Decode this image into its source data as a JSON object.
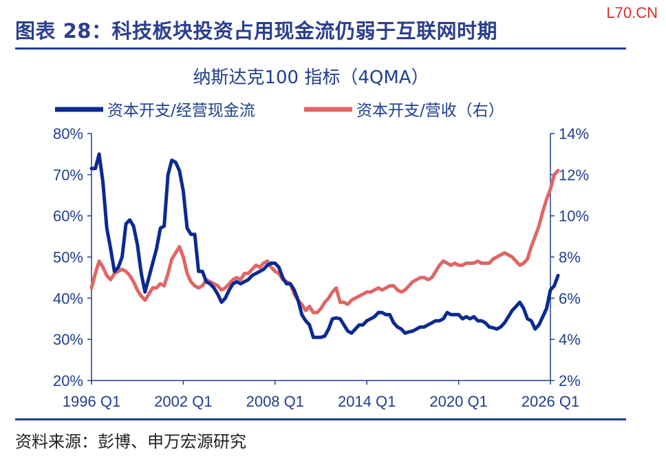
{
  "header": {
    "title": "图表 28：科技板块投资占用现金流仍弱于互联网时期",
    "watermark": "L70.CN"
  },
  "footer": {
    "source": "资料来源：彭博、申万宏源研究"
  },
  "colors": {
    "series1": "#0b2a91",
    "series2": "#e06666",
    "axis": "#1f3f8f"
  },
  "chart_data": {
    "type": "line",
    "title": "纳斯达克100 指标（4QMA）",
    "legend_position": "top",
    "grid": false,
    "x_range": [
      1996.0,
      2026.0
    ],
    "x_ticks": [
      {
        "value": 1996.0,
        "label": "1996 Q1"
      },
      {
        "value": 2002.0,
        "label": "2002 Q1"
      },
      {
        "value": 2008.0,
        "label": "2008 Q1"
      },
      {
        "value": 2014.0,
        "label": "2014 Q1"
      },
      {
        "value": 2020.0,
        "label": "2020 Q1"
      },
      {
        "value": 2026.0,
        "label": "2026 Q1"
      }
    ],
    "y_left": {
      "range": [
        20,
        80
      ],
      "ticks": [
        "20%",
        "30%",
        "40%",
        "50%",
        "60%",
        "70%",
        "80%"
      ],
      "tick_values": [
        20,
        30,
        40,
        50,
        60,
        70,
        80
      ]
    },
    "y_right": {
      "range": [
        2,
        14
      ],
      "ticks": [
        "2%",
        "4%",
        "6%",
        "8%",
        "10%",
        "12%",
        "14%"
      ],
      "tick_values": [
        2,
        4,
        6,
        8,
        10,
        12,
        14
      ]
    },
    "series": [
      {
        "name": "资本开支/经营现金流",
        "axis": "left",
        "points": [
          [
            1996.0,
            71.5
          ],
          [
            1996.25,
            71.5
          ],
          [
            1996.5,
            75
          ],
          [
            1996.75,
            68
          ],
          [
            1997.0,
            57
          ],
          [
            1997.25,
            52
          ],
          [
            1997.5,
            46.5
          ],
          [
            1997.75,
            47.5
          ],
          [
            1998.0,
            50
          ],
          [
            1998.25,
            58
          ],
          [
            1998.5,
            59
          ],
          [
            1998.75,
            57.5
          ],
          [
            1999.0,
            53
          ],
          [
            1999.25,
            46
          ],
          [
            1999.5,
            41.5
          ],
          [
            1999.75,
            45
          ],
          [
            2000.0,
            48.5
          ],
          [
            2000.25,
            52
          ],
          [
            2000.5,
            57
          ],
          [
            2000.75,
            57.5
          ],
          [
            2001.0,
            70
          ],
          [
            2001.25,
            73.5
          ],
          [
            2001.5,
            73
          ],
          [
            2001.75,
            71
          ],
          [
            2002.0,
            66
          ],
          [
            2002.25,
            57
          ],
          [
            2002.5,
            55.5
          ],
          [
            2002.75,
            55.5
          ],
          [
            2003.0,
            46.5
          ],
          [
            2003.25,
            46.5
          ],
          [
            2003.5,
            44
          ],
          [
            2003.75,
            43.5
          ],
          [
            2004.0,
            42.5
          ],
          [
            2004.25,
            41
          ],
          [
            2004.5,
            39
          ],
          [
            2004.75,
            40
          ],
          [
            2005.0,
            42
          ],
          [
            2005.25,
            43.5
          ],
          [
            2005.5,
            44
          ],
          [
            2005.75,
            43.5
          ],
          [
            2006.0,
            44
          ],
          [
            2006.25,
            44.5
          ],
          [
            2006.5,
            45.5
          ],
          [
            2006.75,
            46
          ],
          [
            2007.0,
            46.5
          ],
          [
            2007.25,
            47
          ],
          [
            2007.5,
            48
          ],
          [
            2007.75,
            48.5
          ],
          [
            2008.0,
            48.5
          ],
          [
            2008.25,
            47.5
          ],
          [
            2008.5,
            45
          ],
          [
            2008.75,
            43.5
          ],
          [
            2009.0,
            43.5
          ],
          [
            2009.25,
            42
          ],
          [
            2009.5,
            39.5
          ],
          [
            2009.75,
            36
          ],
          [
            2010.0,
            34.5
          ],
          [
            2010.25,
            33.5
          ],
          [
            2010.5,
            30.5
          ],
          [
            2010.75,
            30.5
          ],
          [
            2011.0,
            30.5
          ],
          [
            2011.25,
            30.8
          ],
          [
            2011.5,
            32.5
          ],
          [
            2011.75,
            35
          ],
          [
            2012.0,
            35.2
          ],
          [
            2012.25,
            35
          ],
          [
            2012.5,
            33.5
          ],
          [
            2012.75,
            32
          ],
          [
            2013.0,
            31.5
          ],
          [
            2013.25,
            32.5
          ],
          [
            2013.5,
            33.5
          ],
          [
            2013.75,
            33.5
          ],
          [
            2014.0,
            34.5
          ],
          [
            2014.25,
            35
          ],
          [
            2014.5,
            35.5
          ],
          [
            2014.75,
            36.5
          ],
          [
            2015.0,
            36.5
          ],
          [
            2015.25,
            36
          ],
          [
            2015.5,
            36
          ],
          [
            2015.75,
            34
          ],
          [
            2016.0,
            33
          ],
          [
            2016.25,
            32.5
          ],
          [
            2016.5,
            31.5
          ],
          [
            2016.75,
            31.8
          ],
          [
            2017.0,
            32
          ],
          [
            2017.25,
            32.5
          ],
          [
            2017.5,
            33
          ],
          [
            2017.75,
            33
          ],
          [
            2018.0,
            33.5
          ],
          [
            2018.25,
            34
          ],
          [
            2018.5,
            34.5
          ],
          [
            2018.75,
            34.5
          ],
          [
            2019.0,
            35
          ],
          [
            2019.25,
            36.5
          ],
          [
            2019.5,
            36
          ],
          [
            2019.75,
            36
          ],
          [
            2020.0,
            36
          ],
          [
            2020.25,
            35
          ],
          [
            2020.5,
            35.5
          ],
          [
            2020.75,
            35
          ],
          [
            2021.0,
            35.5
          ],
          [
            2021.25,
            34.5
          ],
          [
            2021.5,
            34.5
          ],
          [
            2021.75,
            34
          ],
          [
            2022.0,
            33
          ],
          [
            2022.25,
            32.8
          ],
          [
            2022.5,
            32.5
          ],
          [
            2022.75,
            33
          ],
          [
            2023.0,
            34
          ],
          [
            2023.25,
            35.5
          ],
          [
            2023.5,
            37
          ],
          [
            2023.75,
            38
          ],
          [
            2024.0,
            39
          ],
          [
            2024.25,
            37.5
          ],
          [
            2024.5,
            35
          ],
          [
            2024.75,
            34.5
          ],
          [
            2025.0,
            32.5
          ],
          [
            2025.25,
            33.5
          ],
          [
            2025.5,
            35.5
          ],
          [
            2025.75,
            37.5
          ],
          [
            2026.0,
            42
          ],
          [
            2026.25,
            43
          ],
          [
            2026.5,
            45.5
          ]
        ]
      },
      {
        "name": "资本开支/营收（右）",
        "axis": "right",
        "points": [
          [
            1996.0,
            6.5
          ],
          [
            1996.25,
            7.2
          ],
          [
            1996.5,
            7.8
          ],
          [
            1996.75,
            7.5
          ],
          [
            1997.0,
            7.1
          ],
          [
            1997.25,
            6.9
          ],
          [
            1997.5,
            7.2
          ],
          [
            1997.75,
            7.3
          ],
          [
            1998.0,
            7.4
          ],
          [
            1998.25,
            7.3
          ],
          [
            1998.5,
            7.1
          ],
          [
            1998.75,
            6.8
          ],
          [
            1999.0,
            6.4
          ],
          [
            1999.25,
            6.1
          ],
          [
            1999.5,
            5.9
          ],
          [
            1999.75,
            6.2
          ],
          [
            2000.0,
            6.5
          ],
          [
            2000.25,
            6.5
          ],
          [
            2000.5,
            6.7
          ],
          [
            2000.75,
            6.6
          ],
          [
            2001.0,
            7.2
          ],
          [
            2001.25,
            7.9
          ],
          [
            2001.5,
            8.2
          ],
          [
            2001.75,
            8.5
          ],
          [
            2002.0,
            8.0
          ],
          [
            2002.25,
            7.2
          ],
          [
            2002.5,
            6.8
          ],
          [
            2002.75,
            6.6
          ],
          [
            2003.0,
            6.5
          ],
          [
            2003.25,
            6.6
          ],
          [
            2003.5,
            6.9
          ],
          [
            2003.75,
            6.8
          ],
          [
            2004.0,
            6.7
          ],
          [
            2004.25,
            6.6
          ],
          [
            2004.5,
            6.4
          ],
          [
            2004.75,
            6.5
          ],
          [
            2005.0,
            6.7
          ],
          [
            2005.25,
            6.9
          ],
          [
            2005.5,
            7.0
          ],
          [
            2005.75,
            6.9
          ],
          [
            2006.0,
            7.2
          ],
          [
            2006.25,
            7.2
          ],
          [
            2006.5,
            7.4
          ],
          [
            2006.75,
            7.6
          ],
          [
            2007.0,
            7.5
          ],
          [
            2007.25,
            7.7
          ],
          [
            2007.5,
            7.8
          ],
          [
            2007.75,
            7.5
          ],
          [
            2008.0,
            7.3
          ],
          [
            2008.25,
            7.2
          ],
          [
            2008.5,
            6.9
          ],
          [
            2008.75,
            6.8
          ],
          [
            2009.0,
            6.7
          ],
          [
            2009.25,
            6.2
          ],
          [
            2009.5,
            5.9
          ],
          [
            2009.75,
            5.7
          ],
          [
            2010.0,
            5.4
          ],
          [
            2010.25,
            5.6
          ],
          [
            2010.5,
            5.3
          ],
          [
            2010.75,
            5.3
          ],
          [
            2011.0,
            5.5
          ],
          [
            2011.25,
            5.8
          ],
          [
            2011.5,
            6.0
          ],
          [
            2011.75,
            6.3
          ],
          [
            2012.0,
            6.5
          ],
          [
            2012.25,
            5.8
          ],
          [
            2012.5,
            5.8
          ],
          [
            2012.75,
            5.7
          ],
          [
            2013.0,
            5.9
          ],
          [
            2013.25,
            6.0
          ],
          [
            2013.5,
            6.1
          ],
          [
            2013.75,
            6.2
          ],
          [
            2014.0,
            6.3
          ],
          [
            2014.25,
            6.3
          ],
          [
            2014.5,
            6.4
          ],
          [
            2014.75,
            6.5
          ],
          [
            2015.0,
            6.4
          ],
          [
            2015.25,
            6.5
          ],
          [
            2015.5,
            6.6
          ],
          [
            2015.75,
            6.6
          ],
          [
            2016.0,
            6.4
          ],
          [
            2016.25,
            6.3
          ],
          [
            2016.5,
            6.4
          ],
          [
            2016.75,
            6.6
          ],
          [
            2017.0,
            6.8
          ],
          [
            2017.25,
            6.9
          ],
          [
            2017.5,
            7.0
          ],
          [
            2017.75,
            7.0
          ],
          [
            2018.0,
            6.9
          ],
          [
            2018.25,
            7.0
          ],
          [
            2018.5,
            7.3
          ],
          [
            2018.75,
            7.6
          ],
          [
            2019.0,
            7.8
          ],
          [
            2019.25,
            7.7
          ],
          [
            2019.5,
            7.6
          ],
          [
            2019.75,
            7.7
          ],
          [
            2020.0,
            7.6
          ],
          [
            2020.25,
            7.6
          ],
          [
            2020.5,
            7.7
          ],
          [
            2020.75,
            7.7
          ],
          [
            2021.0,
            7.7
          ],
          [
            2021.25,
            7.8
          ],
          [
            2021.5,
            7.7
          ],
          [
            2021.75,
            7.7
          ],
          [
            2022.0,
            7.7
          ],
          [
            2022.25,
            7.9
          ],
          [
            2022.5,
            8.0
          ],
          [
            2022.75,
            8.1
          ],
          [
            2023.0,
            8.2
          ],
          [
            2023.25,
            8.1
          ],
          [
            2023.5,
            8.0
          ],
          [
            2023.75,
            7.8
          ],
          [
            2024.0,
            7.6
          ],
          [
            2024.25,
            7.7
          ],
          [
            2024.5,
            7.9
          ],
          [
            2024.75,
            8.5
          ],
          [
            2025.0,
            9.0
          ],
          [
            2025.25,
            9.5
          ],
          [
            2025.5,
            10.2
          ],
          [
            2025.75,
            10.8
          ],
          [
            2026.0,
            11.3
          ],
          [
            2026.25,
            12.0
          ],
          [
            2026.5,
            12.2
          ]
        ]
      }
    ]
  }
}
